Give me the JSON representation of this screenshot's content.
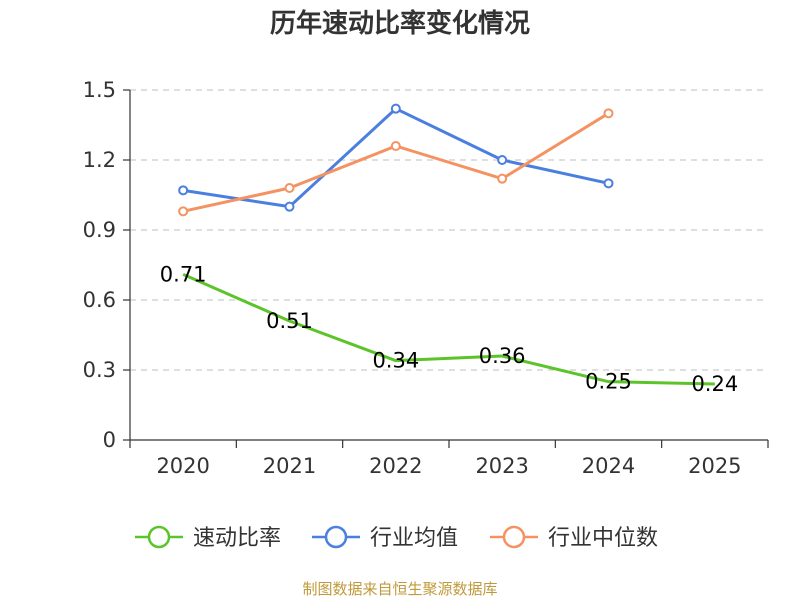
{
  "chart_data": {
    "type": "line",
    "title": "历年速动比率变化情况",
    "categories": [
      "2020",
      "2021",
      "2022",
      "2023",
      "2024",
      "2025"
    ],
    "ylim": [
      0,
      1.5
    ],
    "yticks": [
      0,
      0.3,
      0.6,
      0.9,
      1.2,
      1.5
    ],
    "ytick_labels": [
      "0",
      "0.3",
      "0.6",
      "0.9",
      "1.2",
      "1.5"
    ],
    "grid": true,
    "legend_position": "bottom",
    "series": [
      {
        "name": "速动比率",
        "color": "#5cc42a",
        "values": [
          0.71,
          0.51,
          0.34,
          0.36,
          0.25,
          0.24
        ],
        "labels": [
          "0.71",
          "0.51",
          "0.34",
          "0.36",
          "0.25",
          "0.24"
        ]
      },
      {
        "name": "行业均值",
        "color": "#4a7fe0",
        "values": [
          1.07,
          1.0,
          1.42,
          1.2,
          1.1,
          null
        ]
      },
      {
        "name": "行业中位数",
        "color": "#f59262",
        "values": [
          0.98,
          1.08,
          1.26,
          1.12,
          1.4,
          null
        ]
      }
    ]
  },
  "source_text": "制图数据来自恒生聚源数据库"
}
